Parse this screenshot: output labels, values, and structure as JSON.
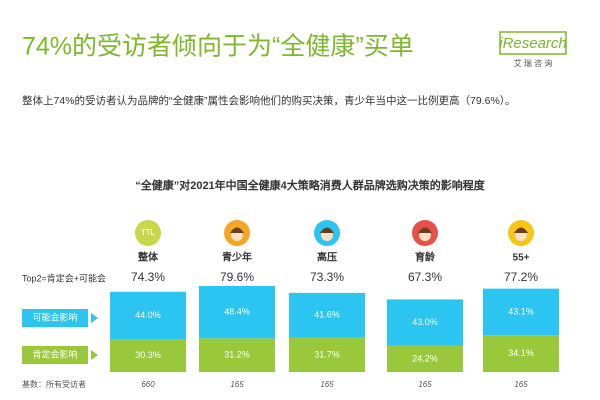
{
  "chart_data": {
    "type": "stacked-bar",
    "title": "74%的受访者倾向于为“全健康”买单",
    "logo": "iResearch",
    "logo_subtitle": "艾 瑞 咨 询",
    "subtitle": "整体上74%的受访者认为品牌的“全健康”属性会影响他们的购买决策，青少年当中这一比例更高（79.6%）。",
    "chart_title": "“全健康”对2021年中国全健康4大策略消费人群品牌选购决策的影响程度",
    "icon_label": "TTL",
    "categories": [
      "整体",
      "青少年",
      "高压",
      "育龄",
      "55+"
    ],
    "top2_label": "Top2=肯定会+可能会",
    "top2_values": [
      74.3,
      79.6,
      73.3,
      67.3,
      77.2
    ],
    "top2_value_labels": [
      "74.3%",
      "79.6%",
      "73.3%",
      "67.3%",
      "77.2%"
    ],
    "series": [
      {
        "name": "肯定会影响",
        "color": "#99c93a",
        "values": [
          30.3,
          31.2,
          31.7,
          24.2,
          34.1
        ],
        "value_labels": [
          "30.3%",
          "31.2%",
          "31.7%",
          "24.2%",
          "34.1%"
        ]
      },
      {
        "name": "可能会影响",
        "color": "#2cc4f0",
        "values": [
          44.0,
          48.4,
          41.6,
          43.0,
          43.1
        ],
        "value_labels": [
          "44.0%",
          "48.4%",
          "41.6%",
          "43.0%",
          "43.1%"
        ]
      }
    ],
    "base_label": "基数：所有受访者",
    "bases": [
      660,
      165,
      165,
      165,
      165
    ]
  }
}
